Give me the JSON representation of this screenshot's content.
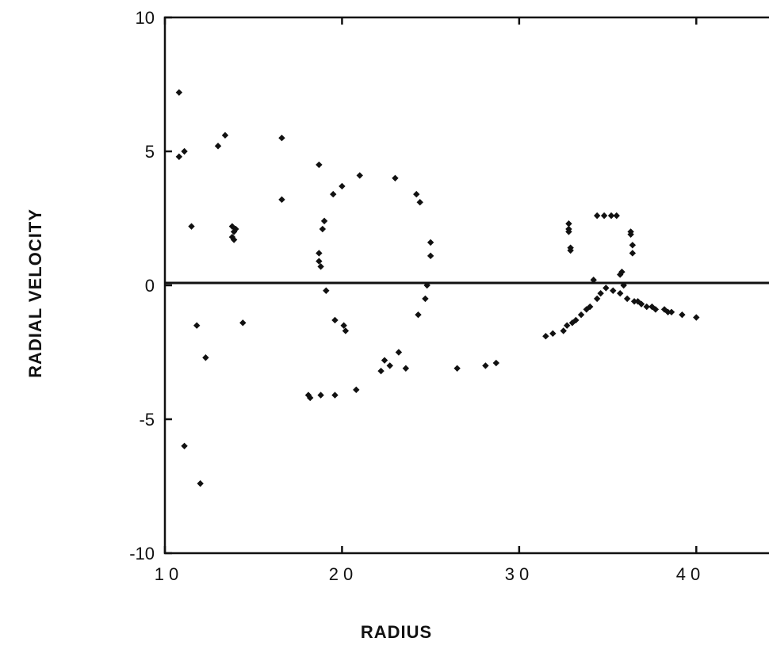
{
  "chart_data": {
    "type": "scatter",
    "title": "",
    "xlabel": "RADIUS",
    "ylabel": "RADIAL VELOCITY",
    "xlim": [
      10,
      45
    ],
    "ylim": [
      -10,
      10
    ],
    "x_ticks": [
      10,
      20,
      30,
      40
    ],
    "y_ticks": [
      10,
      5,
      0,
      -5,
      -10
    ],
    "x_tick_labels": [
      "1 0",
      "2 0",
      "3 0",
      "4 0"
    ],
    "y_tick_labels": [
      "10",
      "5",
      "0",
      "-5",
      "-10"
    ],
    "reference_line_y": 0,
    "grid": false,
    "legend": "none",
    "series": [
      {
        "x": [
          10.8,
          10.8,
          11.1,
          11.1,
          11.5,
          11.8,
          12.0,
          12.3,
          13.0,
          13.4,
          13.8,
          13.8,
          13.9,
          13.9,
          14.0,
          14.4,
          16.6,
          16.6,
          18.1,
          18.2,
          18.7,
          18.7,
          18.7,
          18.8,
          18.8,
          18.9,
          19.0,
          19.1,
          19.5,
          19.6,
          19.6,
          20.0,
          20.1,
          20.2,
          20.8,
          21.0,
          22.2,
          22.4,
          22.7,
          23.0,
          23.2,
          23.6,
          24.2,
          24.3,
          24.4,
          24.7,
          24.8,
          25.0,
          25.0,
          26.5,
          28.1,
          28.7,
          31.5,
          31.9,
          32.5,
          32.7,
          32.8,
          32.8,
          32.8,
          32.9,
          32.9,
          33.0,
          33.2,
          33.5,
          33.8,
          34.0,
          34.2,
          34.4,
          34.4,
          34.6,
          34.8,
          34.9,
          35.2,
          35.3,
          35.5,
          35.7,
          35.7,
          35.8,
          35.9,
          36.1,
          36.3,
          36.3,
          36.4,
          36.4,
          36.5,
          36.7,
          36.9,
          37.2,
          37.5,
          37.7,
          38.2,
          38.4,
          38.6,
          39.2,
          40.0
        ],
        "y": [
          7.2,
          4.8,
          5.0,
          -6.0,
          2.2,
          -1.5,
          -7.4,
          -2.7,
          5.2,
          5.6,
          2.2,
          1.8,
          2.0,
          1.7,
          2.1,
          -1.4,
          5.5,
          3.2,
          -4.1,
          -4.2,
          4.5,
          1.2,
          0.9,
          0.7,
          -4.1,
          2.1,
          2.4,
          -0.2,
          3.4,
          -4.1,
          -1.3,
          3.7,
          -1.5,
          -1.7,
          -3.9,
          4.1,
          -3.2,
          -2.8,
          -3.0,
          4.0,
          -2.5,
          -3.1,
          3.4,
          -1.1,
          3.1,
          -0.5,
          0.0,
          1.6,
          1.1,
          -3.1,
          -3.0,
          -2.9,
          -1.9,
          -1.8,
          -1.7,
          -1.5,
          2.3,
          2.1,
          2.0,
          1.4,
          1.3,
          -1.4,
          -1.3,
          -1.1,
          -0.9,
          -0.8,
          0.2,
          -0.5,
          2.6,
          -0.3,
          2.6,
          -0.1,
          2.6,
          -0.2,
          2.6,
          -0.3,
          0.4,
          0.5,
          0.0,
          -0.5,
          2.0,
          1.9,
          1.5,
          1.2,
          -0.6,
          -0.6,
          -0.7,
          -0.8,
          -0.8,
          -0.9,
          -0.9,
          -1.0,
          -1.0,
          -1.1,
          -1.2
        ]
      }
    ]
  }
}
